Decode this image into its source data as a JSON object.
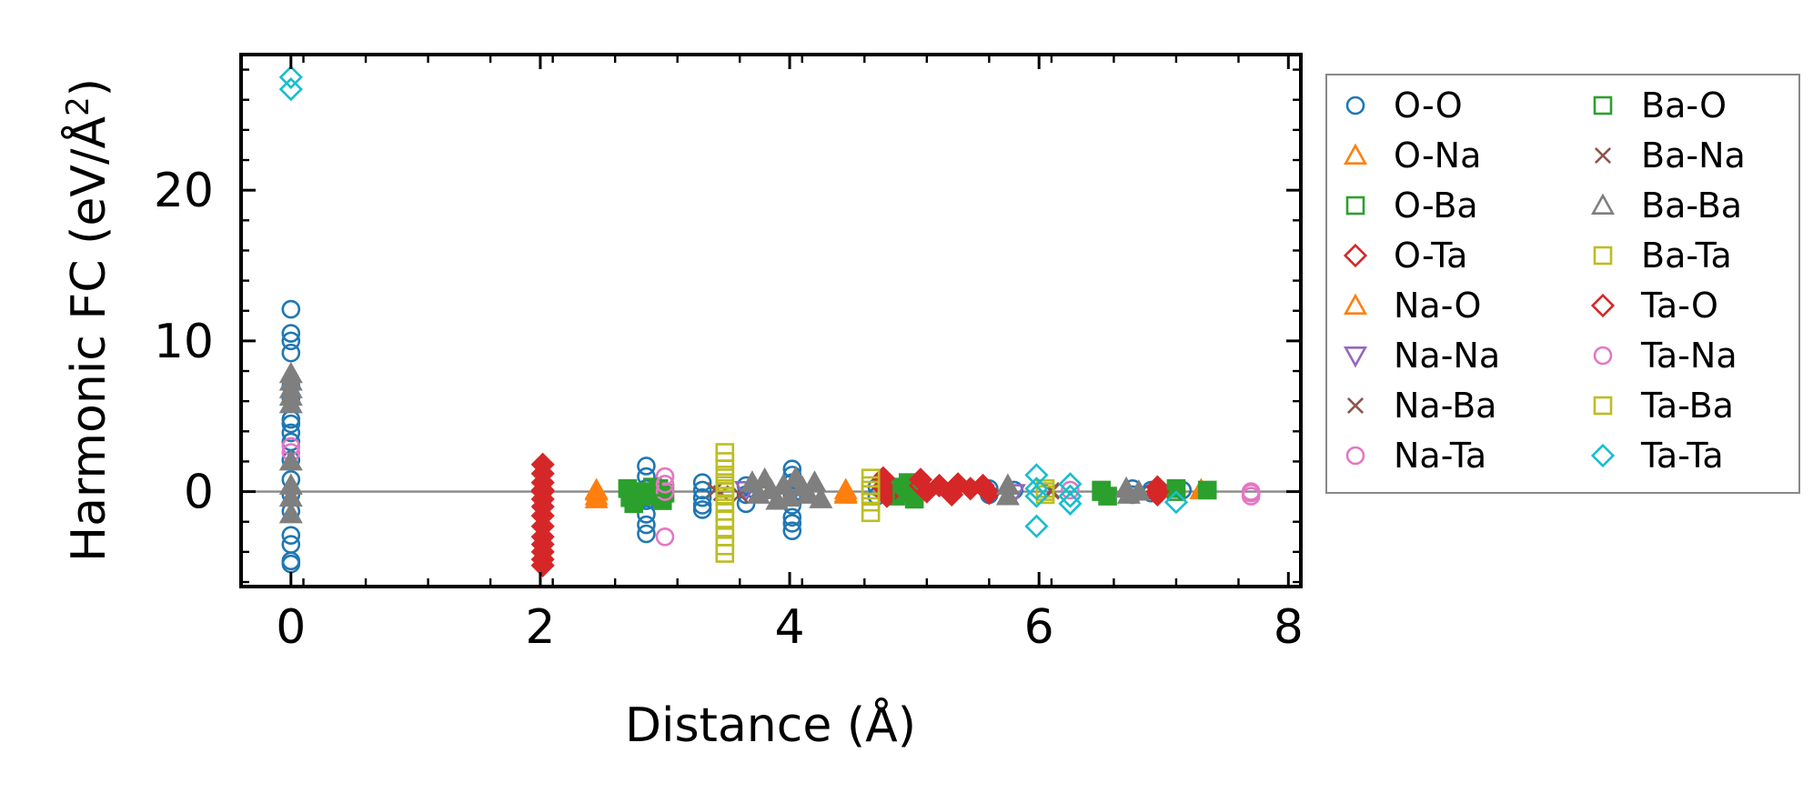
{
  "chart_data": {
    "type": "scatter",
    "xlabel": "Distance (Å)",
    "ylabel_main": "Harmonic FC (eV/Å",
    "ylabel_sup": "2",
    "ylabel_close": ")",
    "xlim": [
      -0.4,
      8.1
    ],
    "ylim": [
      -6.3,
      29.0
    ],
    "xticks": [
      0,
      2,
      4,
      6,
      8
    ],
    "xtick_labels": [
      "0",
      "2",
      "4",
      "6",
      "8"
    ],
    "yticks": [
      0,
      10,
      20
    ],
    "ytick_labels": [
      "0",
      "10",
      "20"
    ],
    "zero_line": 0,
    "legend_position": "outside-right",
    "series": [
      {
        "name": "O-O",
        "marker": "circle",
        "color": "#1f77b4",
        "fill": false,
        "points": [
          [
            0,
            12.1
          ],
          [
            0,
            10.5
          ],
          [
            0,
            10.0
          ],
          [
            0,
            9.2
          ],
          [
            0,
            7.0
          ],
          [
            0,
            6.2
          ],
          [
            0,
            4.8
          ],
          [
            0,
            4.5
          ],
          [
            0,
            3.9
          ],
          [
            0,
            3.3
          ],
          [
            0,
            2.1
          ],
          [
            0,
            0.8
          ],
          [
            0,
            -0.2
          ],
          [
            0,
            -1.3
          ],
          [
            0,
            -2.9
          ],
          [
            0,
            -3.5
          ],
          [
            0,
            -4.6
          ],
          [
            0,
            -4.8
          ],
          [
            2.85,
            1.7
          ],
          [
            2.85,
            1.0
          ],
          [
            2.85,
            0.2
          ],
          [
            2.85,
            -0.6
          ],
          [
            2.85,
            -1.5
          ],
          [
            2.85,
            -2.2
          ],
          [
            2.85,
            -2.8
          ],
          [
            3.3,
            0.6
          ],
          [
            3.3,
            0.1
          ],
          [
            3.3,
            -0.4
          ],
          [
            3.3,
            -0.9
          ],
          [
            3.3,
            -1.2
          ],
          [
            3.65,
            0.4
          ],
          [
            3.65,
            -0.2
          ],
          [
            3.65,
            -0.8
          ],
          [
            4.02,
            1.5
          ],
          [
            4.02,
            1.1
          ],
          [
            4.02,
            0.6
          ],
          [
            4.02,
            0.2
          ],
          [
            4.02,
            -0.3
          ],
          [
            4.02,
            -0.9
          ],
          [
            4.02,
            -1.7
          ],
          [
            4.02,
            -2.1
          ],
          [
            4.02,
            -2.6
          ],
          [
            4.7,
            0.3
          ],
          [
            4.7,
            -0.3
          ],
          [
            5.6,
            0.2
          ],
          [
            5.6,
            -0.2
          ],
          [
            5.8,
            0.1
          ],
          [
            6.75,
            0.2
          ],
          [
            6.75,
            -0.2
          ],
          [
            6.9,
            0.1
          ],
          [
            6.9,
            -0.1
          ],
          [
            7.15,
            0.1
          ]
        ]
      },
      {
        "name": "O-Na",
        "marker": "triangle-up",
        "color": "#ff7f0e",
        "fill": true,
        "points": [
          [
            2.45,
            0.1
          ],
          [
            2.45,
            -0.3
          ],
          [
            2.45,
            -0.5
          ],
          [
            4.45,
            0.1
          ],
          [
            4.45,
            -0.2
          ],
          [
            7.3,
            0.1
          ]
        ]
      },
      {
        "name": "O-Ba",
        "marker": "square",
        "color": "#2ca02c",
        "fill": true,
        "points": [
          [
            2.7,
            0.2
          ],
          [
            2.72,
            -0.4
          ],
          [
            2.75,
            -0.8
          ],
          [
            2.8,
            0.0
          ],
          [
            2.9,
            -0.3
          ],
          [
            2.95,
            0.2
          ],
          [
            2.98,
            -0.6
          ],
          [
            3.0,
            -0.1
          ],
          [
            4.8,
            0.3
          ],
          [
            4.85,
            -0.3
          ],
          [
            4.9,
            0.0
          ],
          [
            4.95,
            0.6
          ],
          [
            5.0,
            -0.5
          ],
          [
            6.5,
            0.1
          ],
          [
            6.55,
            -0.3
          ],
          [
            7.1,
            0.2
          ],
          [
            7.35,
            0.1
          ]
        ]
      },
      {
        "name": "O-Ta",
        "marker": "diamond",
        "color": "#d62728",
        "fill": true,
        "points": [
          [
            2.02,
            1.8
          ],
          [
            2.02,
            1.2
          ],
          [
            2.02,
            0.6
          ],
          [
            2.02,
            0.1
          ],
          [
            2.02,
            -0.5
          ],
          [
            2.02,
            -1.0
          ],
          [
            2.02,
            -1.6
          ],
          [
            2.02,
            -2.3
          ],
          [
            2.02,
            -3.0
          ],
          [
            2.02,
            -3.5
          ],
          [
            2.02,
            -4.0
          ],
          [
            2.02,
            -4.5
          ],
          [
            2.02,
            -4.9
          ],
          [
            4.75,
            0.9
          ],
          [
            4.75,
            0.3
          ],
          [
            4.78,
            -0.3
          ],
          [
            5.05,
            0.8
          ],
          [
            5.1,
            0.0
          ],
          [
            5.2,
            0.4
          ],
          [
            5.3,
            -0.2
          ],
          [
            5.35,
            0.5
          ],
          [
            5.45,
            0.2
          ],
          [
            5.55,
            0.4
          ],
          [
            5.6,
            -0.1
          ],
          [
            6.95,
            0.3
          ],
          [
            6.95,
            -0.2
          ]
        ]
      },
      {
        "name": "Na-O",
        "marker": "triangle-up",
        "color": "#ff7f0e",
        "fill": false,
        "points": [
          [
            2.45,
            0.0
          ],
          [
            4.45,
            -0.1
          ]
        ]
      },
      {
        "name": "Na-Na",
        "marker": "triangle-down",
        "color": "#9467bd",
        "fill": false,
        "points": [
          [
            3.65,
            0.1
          ],
          [
            5.8,
            -0.1
          ]
        ]
      },
      {
        "name": "Na-Ba",
        "marker": "x",
        "color": "#8c564b",
        "fill": false,
        "points": [
          [
            3.4,
            0.1
          ],
          [
            3.6,
            -0.2
          ],
          [
            6.1,
            0.0
          ]
        ]
      },
      {
        "name": "Na-Ta",
        "marker": "circle",
        "color": "#e377c2",
        "fill": false,
        "points": [
          [
            0,
            3.0
          ],
          [
            0,
            2.6
          ],
          [
            3.0,
            1.0
          ],
          [
            3.0,
            0.0
          ],
          [
            3.0,
            -3.0
          ],
          [
            6.25,
            0.1
          ],
          [
            7.7,
            0.0
          ],
          [
            7.7,
            -0.3
          ]
        ]
      },
      {
        "name": "Ba-O",
        "marker": "square",
        "color": "#2ca02c",
        "fill": false,
        "points": [
          [
            2.8,
            -0.1
          ],
          [
            2.9,
            0.3
          ],
          [
            4.9,
            -0.1
          ],
          [
            6.5,
            0.0
          ],
          [
            7.1,
            0.0
          ]
        ]
      },
      {
        "name": "Ba-Na",
        "marker": "x",
        "color": "#8c564b",
        "fill": false,
        "points": [
          [
            3.45,
            -0.1
          ],
          [
            6.1,
            0.1
          ]
        ]
      },
      {
        "name": "Ba-Ba",
        "marker": "triangle-up",
        "color": "#7f7f7f",
        "fill": true,
        "points": [
          [
            0,
            7.8
          ],
          [
            0,
            7.3
          ],
          [
            0,
            6.8
          ],
          [
            0,
            6.3
          ],
          [
            0,
            5.8
          ],
          [
            0,
            2.0
          ],
          [
            0,
            0.4
          ],
          [
            0,
            -0.4
          ],
          [
            0,
            -1.5
          ],
          [
            3.7,
            0.6
          ],
          [
            3.75,
            -0.2
          ],
          [
            3.8,
            0.8
          ],
          [
            3.85,
            0.1
          ],
          [
            3.9,
            -0.6
          ],
          [
            3.95,
            0.4
          ],
          [
            4.0,
            -0.4
          ],
          [
            4.05,
            0.9
          ],
          [
            4.1,
            0.3
          ],
          [
            4.15,
            -0.2
          ],
          [
            4.2,
            0.6
          ],
          [
            4.25,
            -0.5
          ],
          [
            5.75,
            0.4
          ],
          [
            5.75,
            -0.3
          ],
          [
            6.7,
            0.2
          ],
          [
            6.72,
            -0.2
          ],
          [
            6.8,
            0.0
          ]
        ]
      },
      {
        "name": "Ba-Ta",
        "marker": "square",
        "color": "#bcbd22",
        "fill": false,
        "points": [
          [
            3.48,
            2.6
          ],
          [
            3.48,
            2.0
          ],
          [
            3.48,
            1.5
          ],
          [
            3.48,
            1.1
          ],
          [
            3.48,
            0.6
          ],
          [
            3.48,
            0.2
          ],
          [
            3.48,
            -0.3
          ],
          [
            3.48,
            -0.8
          ],
          [
            3.48,
            -1.3
          ],
          [
            3.48,
            -1.8
          ],
          [
            3.48,
            -2.4
          ],
          [
            3.48,
            -3.0
          ],
          [
            3.48,
            -3.6
          ],
          [
            3.48,
            -4.1
          ],
          [
            4.65,
            0.9
          ],
          [
            4.65,
            0.4
          ],
          [
            4.65,
            -0.2
          ],
          [
            4.65,
            -0.7
          ],
          [
            4.65,
            -1.4
          ],
          [
            6.05,
            0.2
          ],
          [
            6.05,
            -0.2
          ]
        ]
      },
      {
        "name": "Ta-O",
        "marker": "diamond",
        "color": "#d62728",
        "fill": false,
        "points": [
          [
            2.02,
            0.0
          ],
          [
            5.05,
            0.4
          ],
          [
            6.95,
            0.0
          ]
        ]
      },
      {
        "name": "Ta-Na",
        "marker": "circle",
        "color": "#e377c2",
        "fill": false,
        "points": [
          [
            3.0,
            0.5
          ],
          [
            7.7,
            -0.1
          ]
        ]
      },
      {
        "name": "Ta-Ba",
        "marker": "square",
        "color": "#bcbd22",
        "fill": false,
        "points": [
          [
            3.48,
            0.0
          ],
          [
            4.65,
            0.1
          ],
          [
            6.05,
            0.0
          ]
        ]
      },
      {
        "name": "Ta-Ta",
        "marker": "diamond",
        "color": "#17becf",
        "fill": false,
        "points": [
          [
            0,
            27.5
          ],
          [
            0,
            26.7
          ],
          [
            5.98,
            1.1
          ],
          [
            5.98,
            0.2
          ],
          [
            5.98,
            -0.3
          ],
          [
            5.98,
            -2.3
          ],
          [
            6.25,
            0.5
          ],
          [
            6.25,
            -0.3
          ],
          [
            6.25,
            -0.8
          ],
          [
            7.1,
            -0.7
          ]
        ]
      }
    ]
  }
}
